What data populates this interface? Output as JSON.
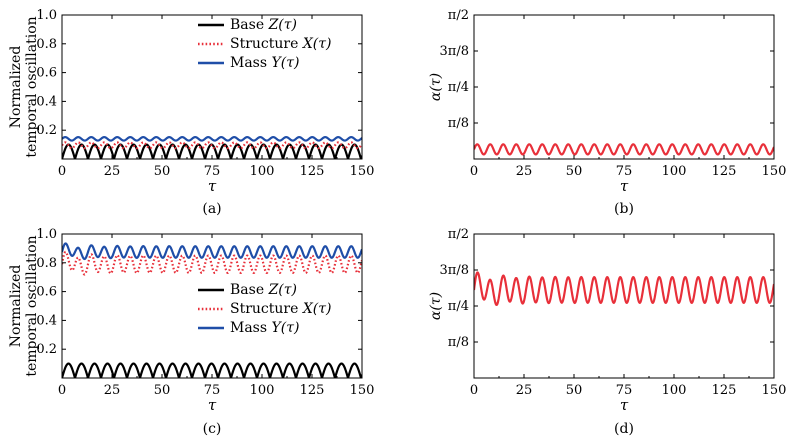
{
  "chart_data": [
    {
      "id": "a",
      "type": "line",
      "caption": "(a)",
      "xlabel": "τ",
      "ylabel": [
        "Normalized",
        "temporal oscillation"
      ],
      "xlim": [
        0,
        150
      ],
      "ylim": [
        0,
        1.0
      ],
      "xticks": [
        "0",
        "25",
        "50",
        "75",
        "100",
        "125",
        "150"
      ],
      "yticks": [
        "0.2",
        "0.4",
        "0.6",
        "0.8",
        "1.0"
      ],
      "ytick_values": [
        0.2,
        0.4,
        0.6,
        0.8,
        1.0
      ],
      "legend": {
        "placement": "top-right"
      },
      "series": [
        {
          "name": "Base Z(τ)",
          "label": "Base ",
          "math": "Z(τ)",
          "color": "#000000",
          "style": "solid",
          "form": "abs_sin",
          "amplitude": 0.1,
          "period": 6.5,
          "offset": 0
        },
        {
          "name": "Structure X(τ)",
          "label": "Structure ",
          "math": "X(τ)",
          "color": "#e8303a",
          "style": "dotted",
          "form": "sin",
          "center": 0.095,
          "amplitude": 0.02,
          "period": 6.5
        },
        {
          "name": "Mass Y(τ)",
          "label": "Mass ",
          "math": "Y(τ)",
          "color": "#1f4ea8",
          "style": "solid",
          "form": "sin",
          "center": 0.14,
          "amplitude": 0.012,
          "period": 6.5
        }
      ]
    },
    {
      "id": "b",
      "type": "line",
      "caption": "(b)",
      "xlabel": "τ",
      "ylabel": "α(τ)",
      "xlim": [
        0,
        150
      ],
      "ylim": [
        0,
        1.5708
      ],
      "xticks": [
        "0",
        "25",
        "50",
        "75",
        "100",
        "125",
        "150"
      ],
      "yticks": [
        "π/8",
        "π/4",
        "3π/8",
        "π/2"
      ],
      "ytick_values": [
        0.3927,
        0.7854,
        1.1781,
        1.5708
      ],
      "series": [
        {
          "name": "α(τ)",
          "color": "#e8303a",
          "style": "solid",
          "form": "sin",
          "center": 0.105,
          "amplitude": 0.055,
          "period": 6.5
        }
      ]
    },
    {
      "id": "c",
      "type": "line",
      "caption": "(c)",
      "xlabel": "τ",
      "ylabel": [
        "Normalized",
        "temporal oscillation"
      ],
      "xlim": [
        0,
        150
      ],
      "ylim": [
        0,
        1.0
      ],
      "xticks": [
        "0",
        "25",
        "50",
        "75",
        "100",
        "125",
        "150"
      ],
      "yticks": [
        "0.2",
        "0.4",
        "0.6",
        "0.8",
        "1.0"
      ],
      "ytick_values": [
        0.2,
        0.4,
        0.6,
        0.8,
        1.0
      ],
      "legend": {
        "placement": "center-right"
      },
      "series": [
        {
          "name": "Base Z(τ)",
          "label": "Base ",
          "math": "Z(τ)",
          "color": "#000000",
          "style": "solid",
          "form": "abs_sin",
          "amplitude": 0.1,
          "period": 6.5,
          "offset": 0
        },
        {
          "name": "Structure X(τ)",
          "label": "Structure ",
          "math": "X(τ)",
          "color": "#e8303a",
          "style": "dotted",
          "form": "sin",
          "center": 0.79,
          "amplitude": 0.06,
          "period": 6.5,
          "transient_amp": 0.04
        },
        {
          "name": "Mass Y(τ)",
          "label": "Mass ",
          "math": "Y(τ)",
          "color": "#1f4ea8",
          "style": "solid",
          "form": "sin",
          "center": 0.875,
          "amplitude": 0.04,
          "period": 6.5,
          "transient_amp": 0.03
        }
      ]
    },
    {
      "id": "d",
      "type": "line",
      "caption": "(d)",
      "xlabel": "τ",
      "ylabel": "α(τ)",
      "xlim": [
        0,
        150
      ],
      "ylim": [
        0,
        1.5708
      ],
      "xticks": [
        "0",
        "25",
        "50",
        "75",
        "100",
        "125",
        "150"
      ],
      "yticks": [
        "π/8",
        "π/4",
        "3π/8",
        "π/2"
      ],
      "ytick_values": [
        0.3927,
        0.7854,
        1.1781,
        1.5708
      ],
      "series": [
        {
          "name": "α(τ)",
          "color": "#e8303a",
          "style": "solid",
          "form": "sin",
          "center": 0.96,
          "amplitude": 0.14,
          "period": 6.5,
          "transient_amp": 0.08
        }
      ]
    }
  ]
}
